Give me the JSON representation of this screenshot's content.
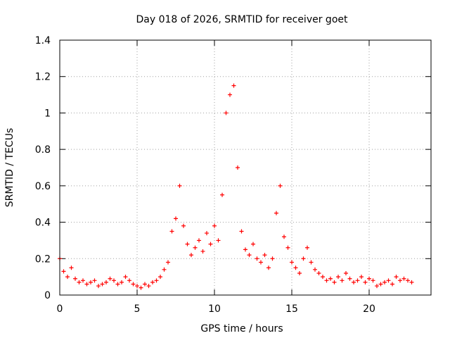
{
  "chart_data": {
    "type": "scatter",
    "title": "Day 018 of 2026, SRMTID for receiver goet",
    "xlabel": "GPS time / hours",
    "ylabel": "SRMTID / TECUs",
    "xlim": [
      0,
      24
    ],
    "ylim": [
      0,
      1.4
    ],
    "xticks": [
      0,
      5,
      10,
      15,
      20
    ],
    "yticks": [
      0,
      0.2,
      0.4,
      0.6,
      0.8,
      1,
      1.2,
      1.4
    ],
    "xtick_labels": [
      "0",
      "5",
      "10",
      "15",
      "20"
    ],
    "ytick_labels": [
      "0",
      "0.2",
      "0.4",
      "0.6",
      "0.8",
      "1",
      "1.2",
      "1.4"
    ],
    "grid": true,
    "marker": "+",
    "color": "#ff0000",
    "series": [
      {
        "name": "SRMTID",
        "x": [
          0.0,
          0.25,
          0.5,
          0.75,
          1.0,
          1.25,
          1.5,
          1.75,
          2.0,
          2.25,
          2.5,
          2.75,
          3.0,
          3.25,
          3.5,
          3.75,
          4.0,
          4.25,
          4.5,
          4.75,
          5.0,
          5.25,
          5.5,
          5.75,
          6.0,
          6.25,
          6.5,
          6.75,
          7.0,
          7.25,
          7.5,
          7.75,
          8.0,
          8.25,
          8.5,
          8.75,
          9.0,
          9.25,
          9.5,
          9.75,
          10.0,
          10.25,
          10.5,
          10.75,
          11.0,
          11.25,
          11.5,
          11.75,
          12.0,
          12.25,
          12.5,
          12.75,
          13.0,
          13.25,
          13.5,
          13.75,
          14.0,
          14.25,
          14.5,
          14.75,
          15.0,
          15.25,
          15.5,
          15.75,
          16.0,
          16.25,
          16.5,
          16.75,
          17.0,
          17.25,
          17.5,
          17.75,
          18.0,
          18.25,
          18.5,
          18.75,
          19.0,
          19.25,
          19.5,
          19.75,
          20.0,
          20.25,
          20.5,
          20.75,
          21.0,
          21.25,
          21.5,
          21.75,
          22.0,
          22.25,
          22.5,
          22.75
        ],
        "y": [
          0.2,
          0.13,
          0.1,
          0.15,
          0.09,
          0.07,
          0.08,
          0.06,
          0.07,
          0.08,
          0.05,
          0.06,
          0.07,
          0.09,
          0.08,
          0.06,
          0.07,
          0.1,
          0.08,
          0.06,
          0.05,
          0.04,
          0.06,
          0.05,
          0.07,
          0.08,
          0.1,
          0.14,
          0.18,
          0.35,
          0.42,
          0.6,
          0.38,
          0.28,
          0.22,
          0.26,
          0.3,
          0.24,
          0.34,
          0.28,
          0.38,
          0.3,
          0.55,
          1.0,
          1.1,
          1.15,
          0.7,
          0.35,
          0.25,
          0.22,
          0.28,
          0.2,
          0.18,
          0.22,
          0.15,
          0.2,
          0.45,
          0.6,
          0.32,
          0.26,
          0.18,
          0.15,
          0.12,
          0.2,
          0.26,
          0.18,
          0.14,
          0.12,
          0.1,
          0.08,
          0.09,
          0.07,
          0.1,
          0.08,
          0.12,
          0.09,
          0.07,
          0.08,
          0.1,
          0.07,
          0.09,
          0.08,
          0.05,
          0.06,
          0.07,
          0.08,
          0.06,
          0.1,
          0.08,
          0.09,
          0.08,
          0.07
        ]
      }
    ]
  }
}
